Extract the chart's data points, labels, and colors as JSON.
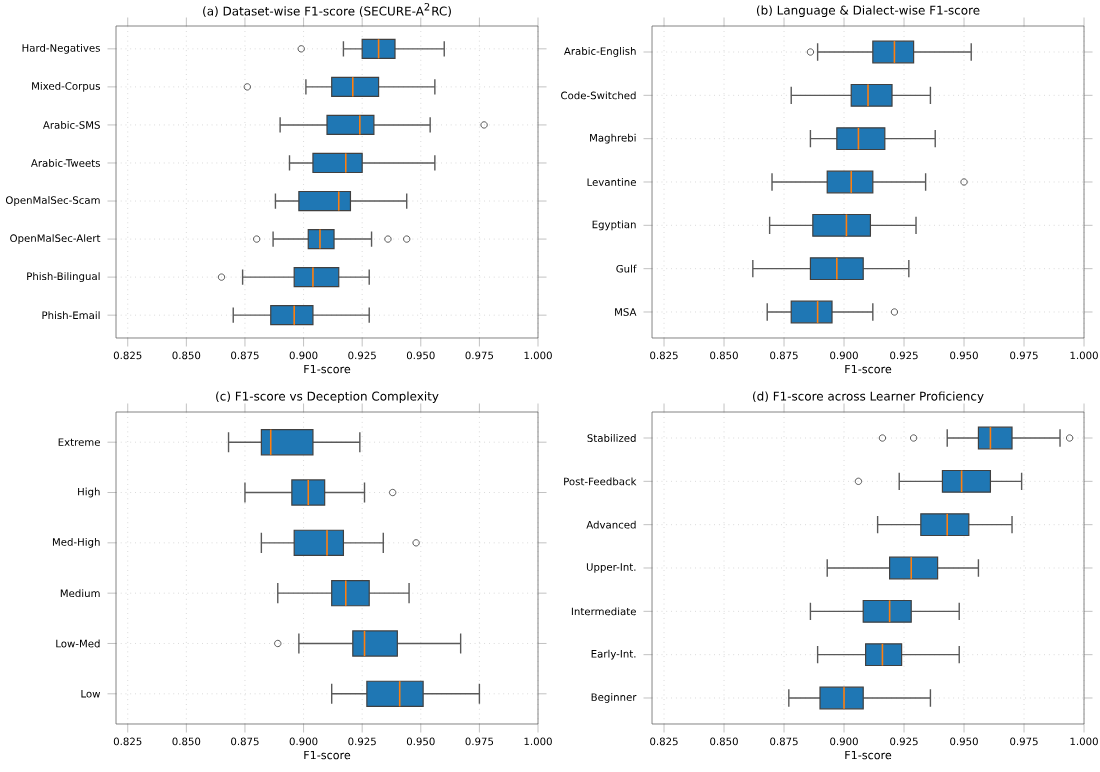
{
  "chart_data": [
    {
      "type": "box",
      "orientation": "horizontal",
      "title": "(a) Dataset-wise F1-score (SECURE-A$^{2}$RC)",
      "xlabel": "F1-score",
      "color": "#1f77b4",
      "grid": true,
      "xlim": [
        0.82,
        1.0
      ],
      "xticks": [
        0.825,
        {
          "value": 0.85,
          "label": "0.850"
        },
        0.875,
        {
          "value": 0.9,
          "label": "0.900"
        },
        0.925,
        {
          "value": 0.95,
          "label": "0.950"
        },
        0.975,
        {
          "value": 1.0,
          "label": "1.000"
        }
      ],
      "categories": [
        "Hard-Negatives",
        "Mixed-Corpus",
        "Arabic-SMS",
        "Arabic-Tweets",
        "OpenMalSec-Scam",
        "OpenMalSec-Alert",
        "Phish-Bilingual",
        "Phish-Email"
      ],
      "boxes": [
        {
          "low": 0.917,
          "q1": 0.925,
          "median": 0.932,
          "q3": 0.939,
          "high": 0.96,
          "outliers": [
            0.899
          ]
        },
        {
          "low": 0.901,
          "q1": 0.912,
          "median": 0.921,
          "q3": 0.932,
          "high": 0.956,
          "outliers": [
            0.876
          ]
        },
        {
          "low": 0.89,
          "q1": 0.91,
          "median": 0.924,
          "q3": 0.93,
          "high": 0.954,
          "outliers": [
            0.977
          ]
        },
        {
          "low": 0.894,
          "q1": 0.904,
          "median": 0.918,
          "q3": 0.925,
          "high": 0.956
        },
        {
          "low": 0.888,
          "q1": 0.898,
          "median": 0.915,
          "q3": 0.92,
          "high": 0.944
        },
        {
          "low": 0.887,
          "q1": 0.902,
          "median": 0.907,
          "q3": 0.913,
          "high": 0.929,
          "outliers": [
            0.88,
            0.936,
            0.944
          ]
        },
        {
          "low": 0.874,
          "q1": 0.896,
          "median": 0.904,
          "q3": 0.915,
          "high": 0.928,
          "outliers": [
            0.865
          ]
        },
        {
          "low": 0.87,
          "q1": 0.886,
          "median": 0.896,
          "q3": 0.904,
          "high": 0.928
        }
      ]
    },
    {
      "type": "box",
      "orientation": "horizontal",
      "title": "(b) Language & Dialect-wise F1-score",
      "xlabel": "F1-score",
      "color": "#1f77b4",
      "grid": true,
      "xlim": [
        0.82,
        1.0
      ],
      "xticks": [
        0.825,
        {
          "value": 0.85,
          "label": "0.850"
        },
        0.875,
        {
          "value": 0.9,
          "label": "0.900"
        },
        0.925,
        {
          "value": 0.95,
          "label": "0.950"
        },
        0.975,
        {
          "value": 1.0,
          "label": "1.000"
        }
      ],
      "categories": [
        "Arabic-English",
        "Code-Switched",
        "Maghrebi",
        "Levantine",
        "Egyptian",
        "Gulf",
        "MSA"
      ],
      "boxes": [
        {
          "low": 0.889,
          "q1": 0.912,
          "median": 0.921,
          "q3": 0.929,
          "high": 0.953,
          "outliers": [
            0.886
          ]
        },
        {
          "low": 0.878,
          "q1": 0.903,
          "median": 0.91,
          "q3": 0.92,
          "high": 0.936
        },
        {
          "low": 0.886,
          "q1": 0.897,
          "median": 0.906,
          "q3": 0.917,
          "high": 0.938
        },
        {
          "low": 0.87,
          "q1": 0.893,
          "median": 0.903,
          "q3": 0.912,
          "high": 0.934,
          "outliers": [
            0.95
          ]
        },
        {
          "low": 0.869,
          "q1": 0.887,
          "median": 0.901,
          "q3": 0.911,
          "high": 0.93
        },
        {
          "low": 0.862,
          "q1": 0.886,
          "median": 0.897,
          "q3": 0.908,
          "high": 0.927
        },
        {
          "low": 0.868,
          "q1": 0.878,
          "median": 0.889,
          "q3": 0.895,
          "high": 0.912,
          "outliers": [
            0.921
          ]
        }
      ]
    },
    {
      "type": "box",
      "orientation": "horizontal",
      "title": "(c) F1-score vs Deception Complexity",
      "xlabel": "F1-score",
      "color": "#1f77b4",
      "grid": true,
      "xlim": [
        0.82,
        1.0
      ],
      "xticks": [
        0.825,
        {
          "value": 0.85,
          "label": "0.850"
        },
        0.875,
        {
          "value": 0.9,
          "label": "0.900"
        },
        0.925,
        {
          "value": 0.95,
          "label": "0.950"
        },
        0.975,
        {
          "value": 1.0,
          "label": "1.000"
        }
      ],
      "categories": [
        "Extreme",
        "High",
        "Med-High",
        "Medium",
        "Low-Med",
        "Low"
      ],
      "boxes": [
        {
          "low": 0.868,
          "q1": 0.882,
          "median": 0.886,
          "q3": 0.904,
          "high": 0.924
        },
        {
          "low": 0.875,
          "q1": 0.895,
          "median": 0.902,
          "q3": 0.909,
          "high": 0.926,
          "outliers": [
            0.938
          ]
        },
        {
          "low": 0.882,
          "q1": 0.896,
          "median": 0.91,
          "q3": 0.917,
          "high": 0.934,
          "outliers": [
            0.948
          ]
        },
        {
          "low": 0.889,
          "q1": 0.912,
          "median": 0.918,
          "q3": 0.928,
          "high": 0.945
        },
        {
          "low": 0.898,
          "q1": 0.921,
          "median": 0.926,
          "q3": 0.94,
          "high": 0.967,
          "outliers": [
            0.889
          ]
        },
        {
          "low": 0.912,
          "q1": 0.927,
          "median": 0.941,
          "q3": 0.951,
          "high": 0.975
        }
      ]
    },
    {
      "type": "box",
      "orientation": "horizontal",
      "title": "(d) F1-score across Learner Proficiency",
      "xlabel": "F1-score",
      "color": "#1f77b4",
      "grid": true,
      "xlim": [
        0.82,
        1.0
      ],
      "xticks": [
        0.825,
        {
          "value": 0.85,
          "label": "0.850"
        },
        0.875,
        {
          "value": 0.9,
          "label": "0.900"
        },
        0.925,
        {
          "value": 0.95,
          "label": "0.950"
        },
        0.975,
        {
          "value": 1.0,
          "label": "1.000"
        }
      ],
      "categories": [
        "Stabilized",
        "Post-Feedback",
        "Advanced",
        "Upper-Int.",
        "Intermediate",
        "Early-Int.",
        "Beginner"
      ],
      "boxes": [
        {
          "low": 0.943,
          "q1": 0.956,
          "median": 0.961,
          "q3": 0.97,
          "high": 0.99,
          "outliers": [
            0.916,
            0.929,
            0.994
          ]
        },
        {
          "low": 0.923,
          "q1": 0.941,
          "median": 0.949,
          "q3": 0.961,
          "high": 0.974,
          "outliers": [
            0.906
          ]
        },
        {
          "low": 0.914,
          "q1": 0.932,
          "median": 0.943,
          "q3": 0.952,
          "high": 0.97
        },
        {
          "low": 0.893,
          "q1": 0.919,
          "median": 0.928,
          "q3": 0.939,
          "high": 0.956
        },
        {
          "low": 0.886,
          "q1": 0.908,
          "median": 0.919,
          "q3": 0.928,
          "high": 0.948
        },
        {
          "low": 0.889,
          "q1": 0.909,
          "median": 0.916,
          "q3": 0.924,
          "high": 0.948
        },
        {
          "low": 0.877,
          "q1": 0.89,
          "median": 0.9,
          "q3": 0.908,
          "high": 0.936
        }
      ]
    }
  ]
}
